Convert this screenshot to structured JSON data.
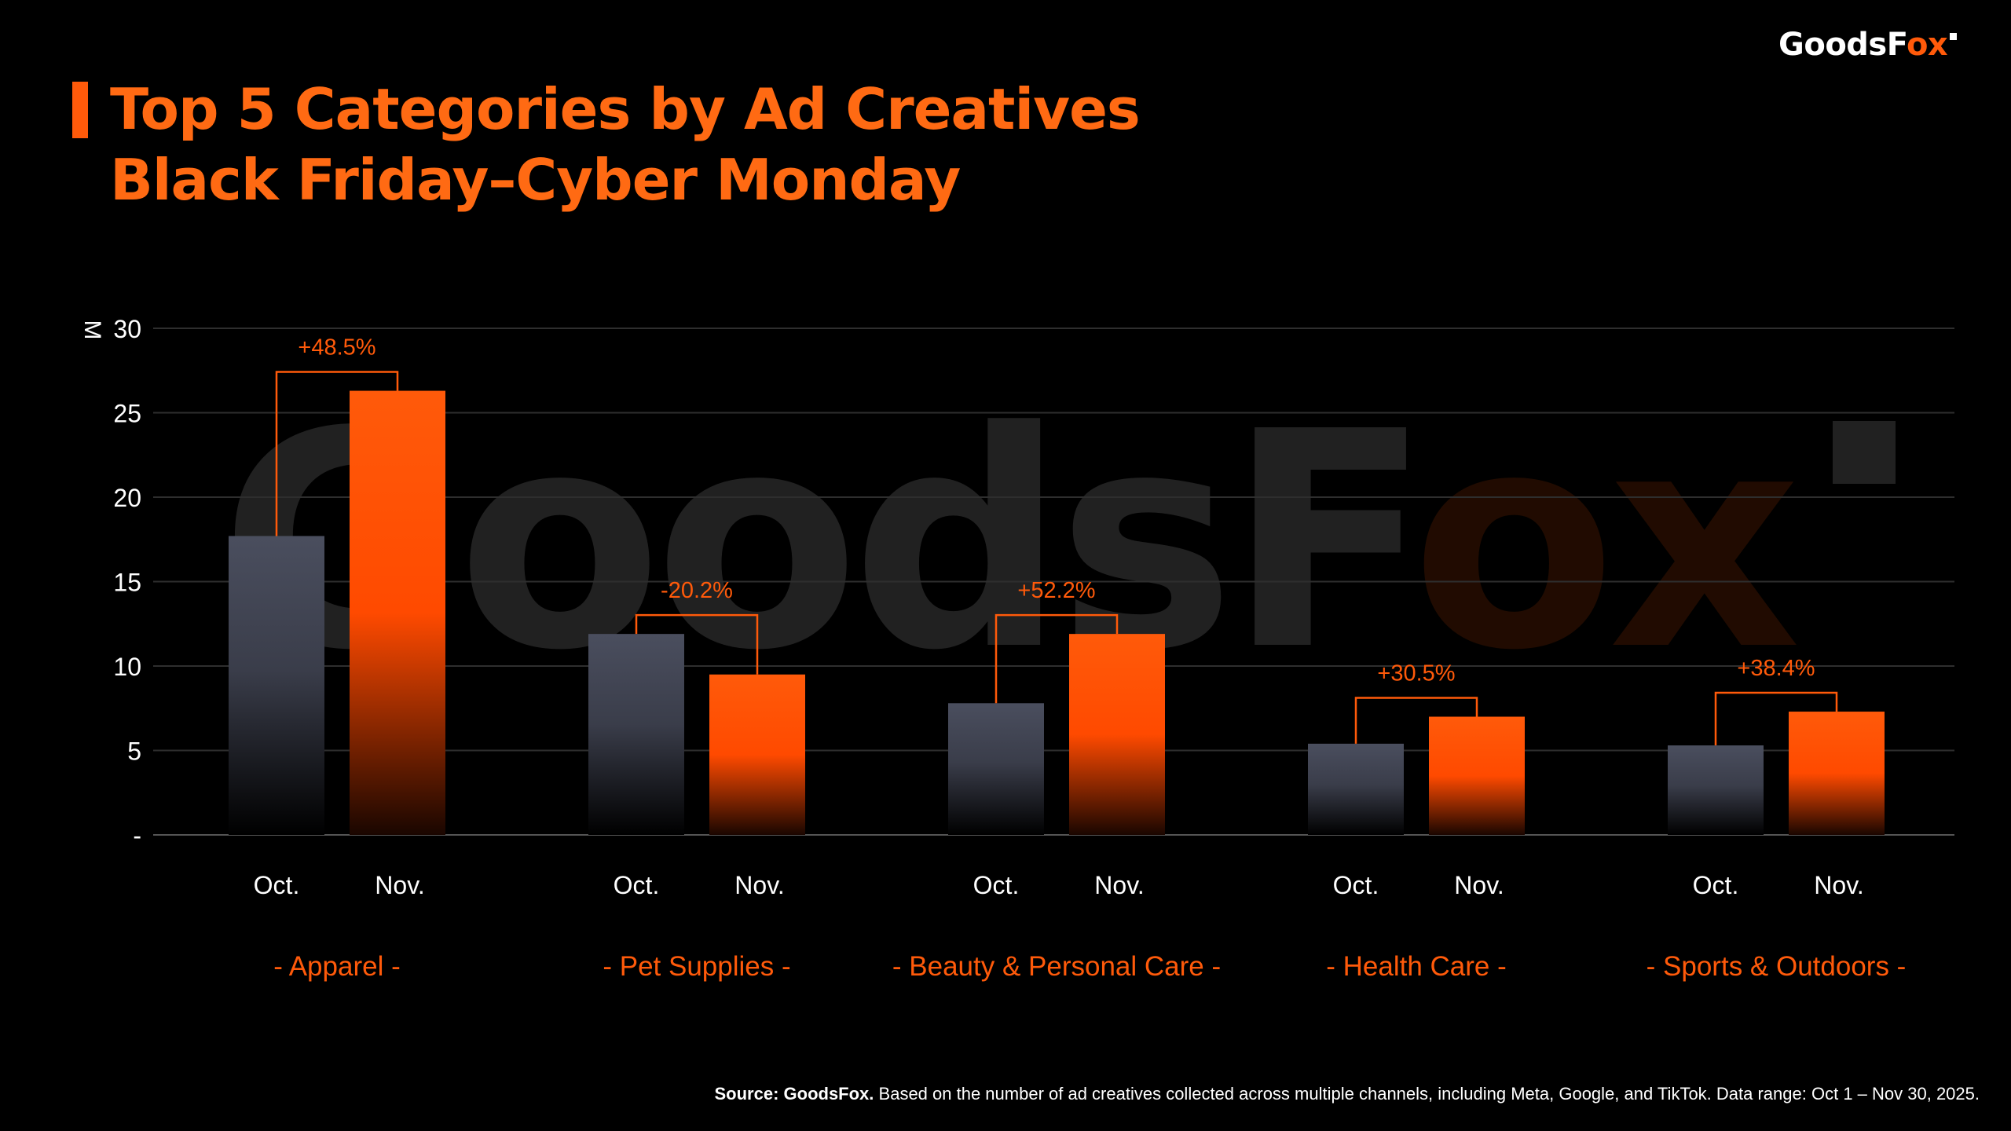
{
  "logo": {
    "text_main": "GoodsF",
    "text_accent": "ox"
  },
  "title": {
    "line1": "Top 5 Categories by Ad Creatives",
    "line2": "Black Friday–Cyber Monday"
  },
  "watermark": {
    "text_main": "GoodsF",
    "text_accent": "ox"
  },
  "source": {
    "bold": "Source: GoodsFox.",
    "text": " Based on the number of ad creatives collected across multiple channels, including Meta, Google, and TikTok. Data range: Oct 1 – Nov 30, 2025."
  },
  "colors": {
    "accent": "#ff5a0a",
    "oct_bar": "#4a4e5e",
    "nov_bar": "#ff5a0a",
    "grid": "#2e2e2e"
  },
  "chart_data": {
    "type": "bar",
    "ylabel": "M",
    "ylim": [
      0,
      30
    ],
    "yticks": [
      {
        "value": 0,
        "label": "-"
      },
      {
        "value": 5,
        "label": "5"
      },
      {
        "value": 10,
        "label": "10"
      },
      {
        "value": 15,
        "label": "15"
      },
      {
        "value": 20,
        "label": "20"
      },
      {
        "value": 25,
        "label": "25"
      },
      {
        "value": 30,
        "label": "30"
      }
    ],
    "grid": true,
    "bar_labels": [
      "Oct.",
      "Nov."
    ],
    "categories": [
      "- Apparel -",
      "- Pet Supplies -",
      "- Beauty & Personal Care -",
      "- Health Care -",
      "- Sports & Outdoors -"
    ],
    "series": [
      {
        "values": [
          17.7,
          11.9,
          7.8,
          5.4,
          5.3
        ]
      },
      {
        "values": [
          26.3,
          9.5,
          11.9,
          7.0,
          7.3
        ]
      }
    ],
    "annotations": [
      "+48.5%",
      "-20.2%",
      "+52.2%",
      "+30.5%",
      "+38.4%"
    ]
  }
}
